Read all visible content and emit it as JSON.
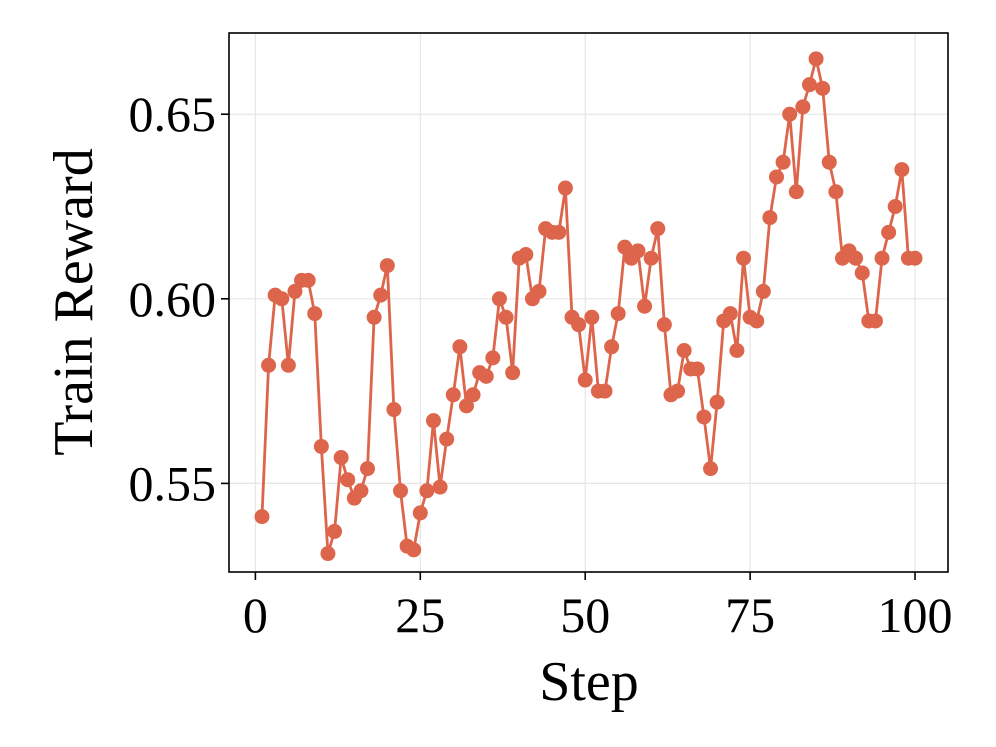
{
  "chart_data": {
    "type": "line",
    "title": "",
    "xlabel": "Step",
    "ylabel": "Train Reward",
    "xlim": [
      -4,
      105
    ],
    "ylim": [
      0.526,
      0.672
    ],
    "grid": true,
    "xticks": [
      0,
      25,
      50,
      75,
      100
    ],
    "xtick_labels": [
      "0",
      "25",
      "50",
      "75",
      "100"
    ],
    "yticks": [
      0.55,
      0.6,
      0.65
    ],
    "ytick_labels": [
      "0.55",
      "0.60",
      "0.65"
    ],
    "series": [
      {
        "color": "#DD654B",
        "x": [
          1,
          2,
          3,
          4,
          5,
          6,
          7,
          8,
          9,
          10,
          11,
          12,
          13,
          14,
          15,
          16,
          17,
          18,
          19,
          20,
          21,
          22,
          23,
          24,
          25,
          26,
          27,
          28,
          29,
          30,
          31,
          32,
          33,
          34,
          35,
          36,
          37,
          38,
          39,
          40,
          41,
          42,
          43,
          44,
          45,
          46,
          47,
          48,
          49,
          50,
          51,
          52,
          53,
          54,
          55,
          56,
          57,
          58,
          59,
          60,
          61,
          62,
          63,
          64,
          65,
          66,
          67,
          68,
          69,
          70,
          71,
          72,
          73,
          74,
          75,
          76,
          77,
          78,
          79,
          80,
          81,
          82,
          83,
          84,
          85,
          86,
          87,
          88,
          89,
          90,
          91,
          92,
          93,
          94,
          95,
          96,
          97,
          98,
          99,
          100
        ],
        "y": [
          0.541,
          0.582,
          0.601,
          0.6,
          0.582,
          0.602,
          0.605,
          0.605,
          0.596,
          0.56,
          0.531,
          0.537,
          0.557,
          0.551,
          0.546,
          0.548,
          0.554,
          0.595,
          0.601,
          0.609,
          0.57,
          0.548,
          0.533,
          0.532,
          0.542,
          0.548,
          0.567,
          0.549,
          0.562,
          0.574,
          0.587,
          0.571,
          0.574,
          0.58,
          0.579,
          0.584,
          0.6,
          0.595,
          0.58,
          0.611,
          0.612,
          0.6,
          0.602,
          0.619,
          0.618,
          0.618,
          0.63,
          0.595,
          0.593,
          0.578,
          0.595,
          0.575,
          0.575,
          0.587,
          0.596,
          0.614,
          0.611,
          0.613,
          0.598,
          0.611,
          0.619,
          0.593,
          0.574,
          0.575,
          0.586,
          0.581,
          0.581,
          0.568,
          0.554,
          0.572,
          0.594,
          0.596,
          0.586,
          0.611,
          0.595,
          0.594,
          0.602,
          0.622,
          0.633,
          0.637,
          0.65,
          0.629,
          0.652,
          0.658,
          0.665,
          0.657,
          0.637,
          0.629,
          0.611,
          0.613,
          0.611,
          0.607,
          0.594,
          0.594,
          0.611,
          0.618,
          0.625,
          0.635,
          0.611,
          0.611
        ]
      }
    ]
  }
}
